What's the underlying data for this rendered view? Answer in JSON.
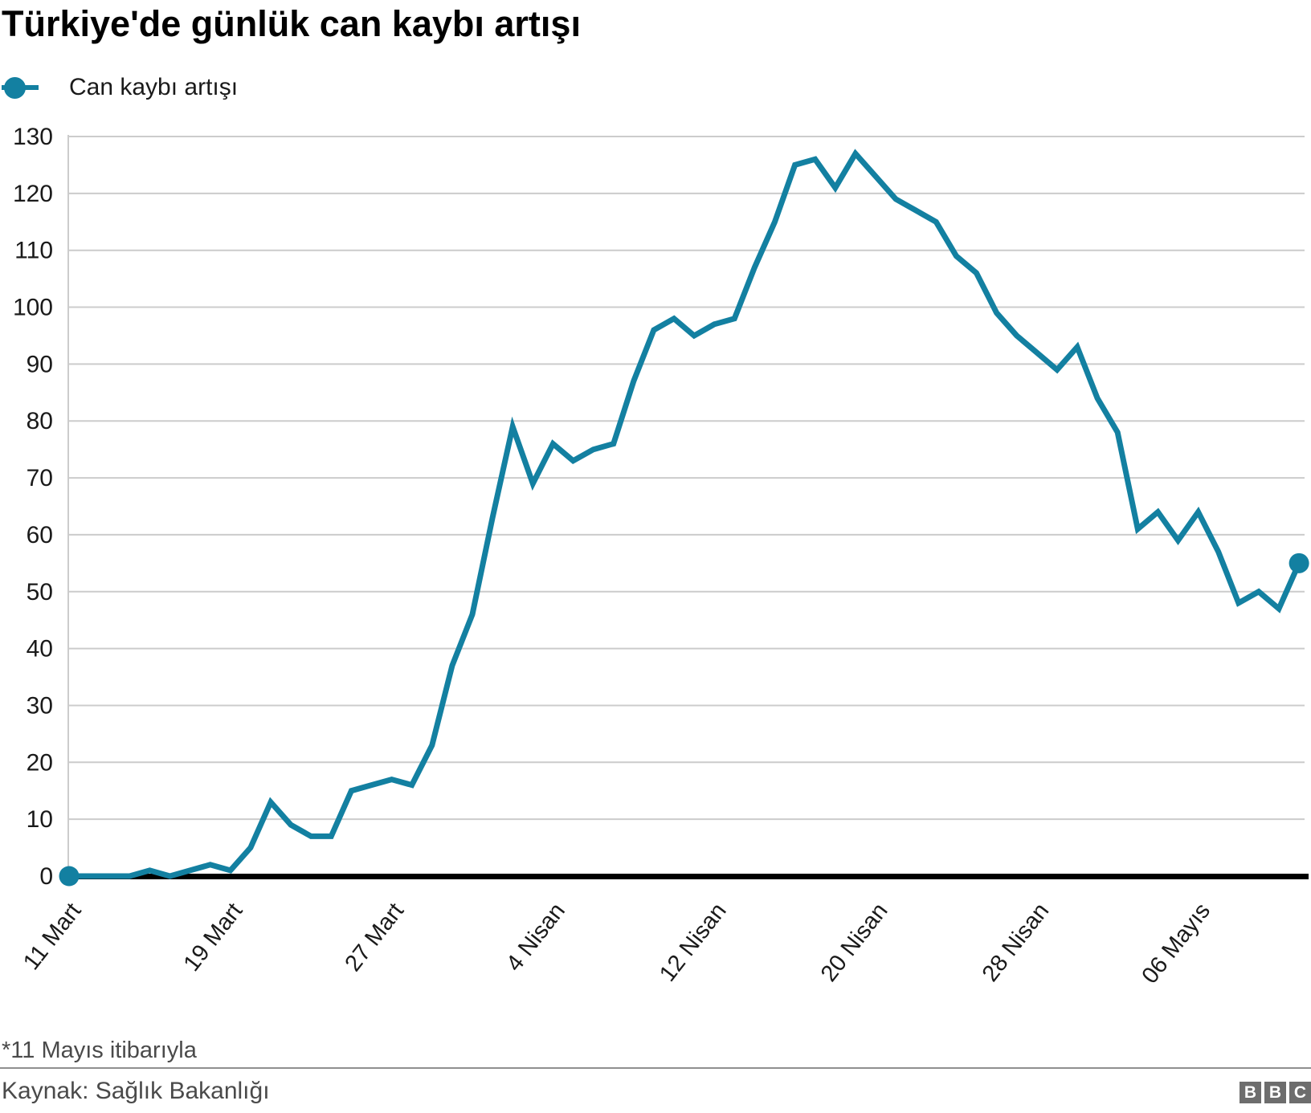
{
  "title": "Türkiye'de günlük can kaybı artışı",
  "legend": {
    "label": "Can kaybı artışı"
  },
  "footnote": "*11 Mayıs itibarıyla",
  "source": "Kaynak: Sağlık Bakanlığı",
  "logo": {
    "letters": [
      "B",
      "B",
      "C"
    ]
  },
  "colors": {
    "series": "#1380A1",
    "grid": "#cccccc",
    "axis": "#000000",
    "tick_text": "#1a1a1a",
    "muted_text": "#4a4a4a",
    "divider": "#8f8f8f",
    "logo": "#6d6d6d"
  },
  "chart_data": {
    "type": "line",
    "title": "Türkiye'de günlük can kaybı artışı",
    "xlabel": "",
    "ylabel": "",
    "ylim": [
      0,
      130
    ],
    "grid": "horizontal",
    "legend_position": "top-left",
    "endpoint_markers": true,
    "y_ticks": [
      0,
      10,
      20,
      30,
      40,
      50,
      60,
      70,
      80,
      90,
      100,
      110,
      120,
      130
    ],
    "x_tick_labels": [
      "11 Mart",
      "19 Mart",
      "27 Mart",
      "4 Nisan",
      "12 Nisan",
      "20 Nisan",
      "28 Nisan",
      "06 Mayıs"
    ],
    "x_tick_day_positions": [
      0,
      8,
      16,
      24,
      32,
      40,
      48,
      56
    ],
    "x_range_note": "daily points from 11 Mart to 11 Mayıs",
    "series": [
      {
        "name": "Can kaybı artışı",
        "values": [
          0,
          0,
          0,
          0,
          1,
          0,
          1,
          2,
          1,
          5,
          13,
          9,
          7,
          7,
          15,
          16,
          17,
          16,
          23,
          37,
          46,
          63,
          79,
          69,
          76,
          73,
          75,
          76,
          87,
          96,
          98,
          95,
          97,
          98,
          107,
          115,
          125,
          126,
          121,
          127,
          123,
          119,
          117,
          115,
          109,
          106,
          99,
          95,
          92,
          89,
          93,
          84,
          78,
          61,
          64,
          59,
          64,
          57,
          48,
          50,
          47,
          55
        ]
      }
    ]
  }
}
